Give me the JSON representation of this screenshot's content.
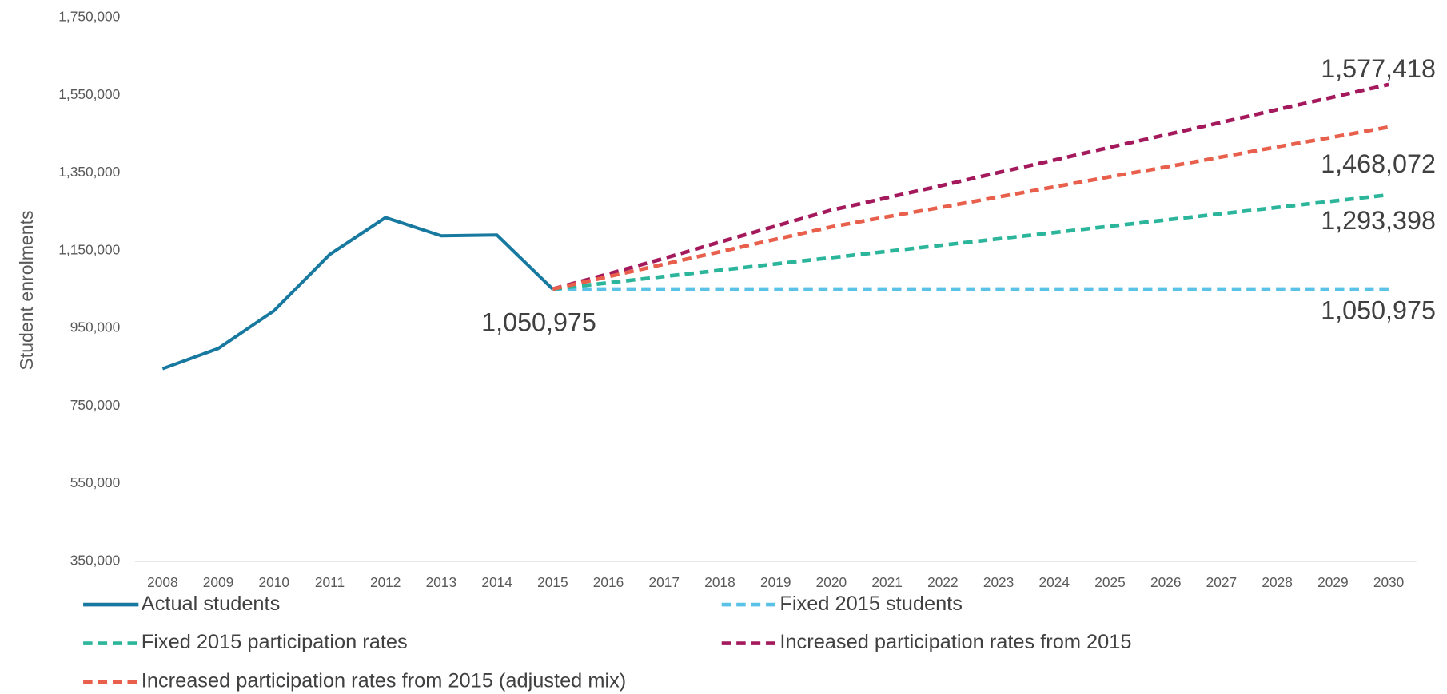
{
  "chart_data": {
    "type": "line",
    "y_label": "Student enrolments",
    "categories": [
      "2008",
      "2009",
      "2010",
      "2011",
      "2012",
      "2013",
      "2014",
      "2015",
      "2016",
      "2017",
      "2018",
      "2019",
      "2020",
      "2021",
      "2022",
      "2023",
      "2024",
      "2025",
      "2026",
      "2027",
      "2028",
      "2029",
      "2030"
    ],
    "ylim": [
      350000,
      1750000
    ],
    "yticks": [
      {
        "value": 350000,
        "label": "350,000"
      },
      {
        "value": 550000,
        "label": "550,000"
      },
      {
        "value": 750000,
        "label": "750,000"
      },
      {
        "value": 950000,
        "label": "950,000"
      },
      {
        "value": 1150000,
        "label": "1,150,000"
      },
      {
        "value": 1350000,
        "label": "1,350,000"
      },
      {
        "value": 1550000,
        "label": "1,550,000"
      },
      {
        "value": 1750000,
        "label": "1,750,000"
      }
    ],
    "grid": false,
    "series": [
      {
        "name": "Actual students",
        "color": "#17799f",
        "dashed": false,
        "values": [
          846000,
          898000,
          995000,
          1140000,
          1235000,
          1188000,
          1190000,
          1050975,
          null,
          null,
          null,
          null,
          null,
          null,
          null,
          null,
          null,
          null,
          null,
          null,
          null,
          null,
          null
        ],
        "value_labels": [
          null,
          null,
          null,
          null,
          null,
          null,
          null,
          "1,050,975",
          null,
          null,
          null,
          null,
          null,
          null,
          null,
          null,
          null,
          null,
          null,
          null,
          null,
          null,
          null
        ]
      },
      {
        "name": "Fixed 2015 students",
        "color": "#5bc2e7",
        "dashed": true,
        "values": [
          null,
          null,
          null,
          null,
          null,
          null,
          null,
          1050975,
          1050975,
          1050975,
          1050975,
          1050975,
          1050975,
          1050975,
          1050975,
          1050975,
          1050975,
          1050975,
          1050975,
          1050975,
          1050975,
          1050975,
          1050975
        ],
        "value_labels": [
          null,
          null,
          null,
          null,
          null,
          null,
          null,
          null,
          null,
          null,
          null,
          null,
          null,
          null,
          null,
          null,
          null,
          null,
          null,
          null,
          null,
          null,
          "1,050,975"
        ]
      },
      {
        "name": "Fixed 2015 participation rates",
        "color": "#2bb59a",
        "dashed": true,
        "values": [
          null,
          null,
          null,
          null,
          null,
          null,
          null,
          1050975,
          1067137,
          1083298,
          1099460,
          1115621,
          1131783,
          1147945,
          1164106,
          1180268,
          1196429,
          1212591,
          1228752,
          1244914,
          1261075,
          1277237,
          1293398
        ],
        "value_labels": [
          null,
          null,
          null,
          null,
          null,
          null,
          null,
          null,
          null,
          null,
          null,
          null,
          null,
          null,
          null,
          null,
          null,
          null,
          null,
          null,
          null,
          null,
          "1,293,398"
        ]
      },
      {
        "name": "Increased participation rates from 2015",
        "color": "#a3195b",
        "dashed": true,
        "values": [
          null,
          null,
          null,
          null,
          null,
          null,
          null,
          1050975,
          1090000,
          1130000,
          1172000,
          1213000,
          1254000,
          1286000,
          1318000,
          1351000,
          1383000,
          1416000,
          1448000,
          1480000,
          1513000,
          1545000,
          1577418
        ],
        "value_labels": [
          null,
          null,
          null,
          null,
          null,
          null,
          null,
          null,
          null,
          null,
          null,
          null,
          null,
          null,
          null,
          null,
          null,
          null,
          null,
          null,
          null,
          null,
          "1,577,418"
        ]
      },
      {
        "name": "Increased participation rates from 2015 (adjusted mix)",
        "color": "#e85f4c",
        "dashed": true,
        "values": [
          null,
          null,
          null,
          null,
          null,
          null,
          null,
          1050975,
          1083000,
          1115000,
          1147000,
          1179000,
          1211000,
          1237000,
          1262000,
          1288000,
          1314000,
          1340000,
          1365000,
          1391000,
          1417000,
          1442000,
          1468072
        ],
        "value_labels": [
          null,
          null,
          null,
          null,
          null,
          null,
          null,
          null,
          null,
          null,
          null,
          null,
          null,
          null,
          null,
          null,
          null,
          null,
          null,
          null,
          null,
          null,
          "1,468,072"
        ]
      }
    ]
  }
}
